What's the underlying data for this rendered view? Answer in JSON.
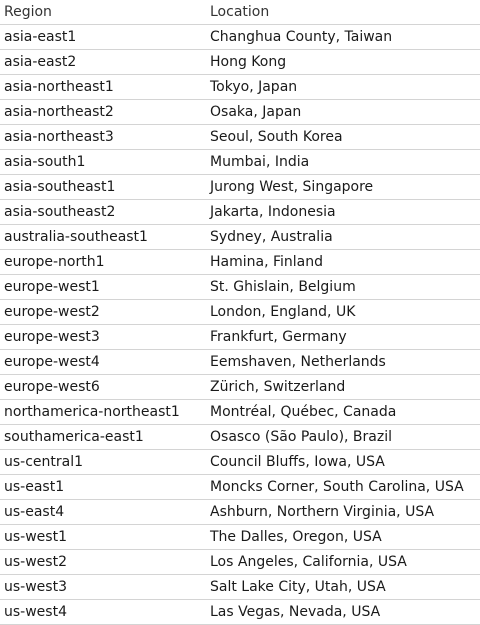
{
  "table": {
    "headers": [
      "Region",
      "Location"
    ],
    "rows": [
      [
        "asia-east1",
        "Changhua County, Taiwan"
      ],
      [
        "asia-east2",
        "Hong Kong"
      ],
      [
        "asia-northeast1",
        "Tokyo, Japan"
      ],
      [
        "asia-northeast2",
        "Osaka, Japan"
      ],
      [
        "asia-northeast3",
        "Seoul, South Korea"
      ],
      [
        "asia-south1",
        "Mumbai, India"
      ],
      [
        "asia-southeast1",
        "Jurong West, Singapore"
      ],
      [
        "asia-southeast2",
        "Jakarta, Indonesia"
      ],
      [
        "australia-southeast1",
        "Sydney, Australia"
      ],
      [
        "europe-north1",
        "Hamina, Finland"
      ],
      [
        "europe-west1",
        "St. Ghislain, Belgium"
      ],
      [
        "europe-west2",
        "London, England, UK"
      ],
      [
        "europe-west3",
        "Frankfurt, Germany"
      ],
      [
        "europe-west4",
        "Eemshaven, Netherlands"
      ],
      [
        "europe-west6",
        "Zürich, Switzerland"
      ],
      [
        "northamerica-northeast1",
        "Montréal, Québec, Canada"
      ],
      [
        "southamerica-east1",
        "Osasco (São Paulo), Brazil"
      ],
      [
        "us-central1",
        "Council Bluffs, Iowa, USA"
      ],
      [
        "us-east1",
        "Moncks Corner, South Carolina, USA"
      ],
      [
        "us-east4",
        "Ashburn, Northern Virginia, USA"
      ],
      [
        "us-west1",
        "The Dalles, Oregon, USA"
      ],
      [
        "us-west2",
        "Los Angeles, California, USA"
      ],
      [
        "us-west3",
        "Salt Lake City, Utah, USA"
      ],
      [
        "us-west4",
        "Las Vegas, Nevada, USA"
      ]
    ]
  }
}
